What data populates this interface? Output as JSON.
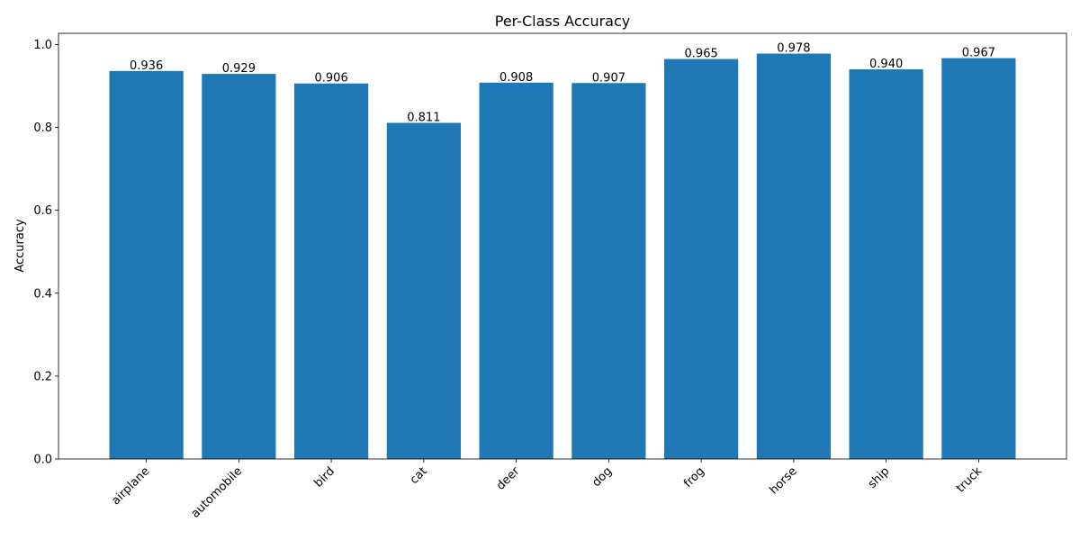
{
  "chart_data": {
    "type": "bar",
    "title": "Per-Class Accuracy",
    "xlabel": "",
    "ylabel": "Accuracy",
    "categories": [
      "airplane",
      "automobile",
      "bird",
      "cat",
      "deer",
      "dog",
      "frog",
      "horse",
      "ship",
      "truck"
    ],
    "values": [
      0.936,
      0.929,
      0.906,
      0.811,
      0.908,
      0.907,
      0.965,
      0.978,
      0.94,
      0.967
    ],
    "data_labels": [
      "0.936",
      "0.929",
      "0.906",
      "0.811",
      "0.908",
      "0.907",
      "0.965",
      "0.978",
      "0.940",
      "0.967"
    ],
    "ylim": [
      0,
      1.027
    ],
    "yticks": [
      0.0,
      0.2,
      0.4,
      0.6,
      0.8,
      1.0
    ],
    "ytick_labels": [
      "0.0",
      "0.2",
      "0.4",
      "0.6",
      "0.8",
      "1.0"
    ],
    "xtick_rotation_deg": 45,
    "grid": false,
    "legend": "none",
    "bar_color": "#1f77b4"
  }
}
